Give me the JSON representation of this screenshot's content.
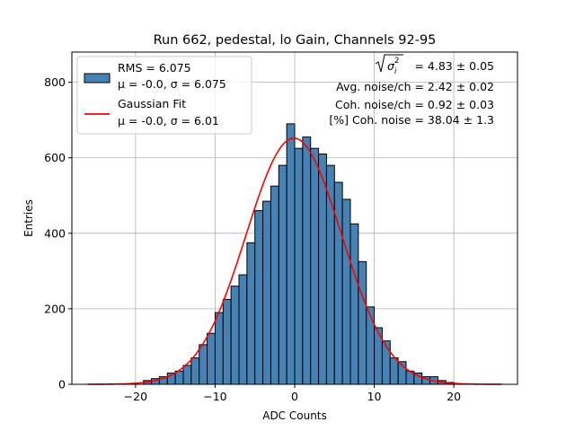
{
  "chart_data": {
    "type": "bar",
    "title": "Run 662, pedestal, lo Gain, Channels 92-95",
    "xlabel": "ADC Counts",
    "ylabel": "Entries",
    "xlim": [
      -28,
      28
    ],
    "ylim": [
      0,
      880
    ],
    "grid": true,
    "xticks": [
      -20,
      -10,
      0,
      10,
      20
    ],
    "yticks": [
      0,
      200,
      400,
      600,
      800
    ],
    "legend_position": "top-left",
    "bin_width": 1,
    "bins": [
      {
        "x0": -19,
        "value": 10
      },
      {
        "x0": -18,
        "value": 15
      },
      {
        "x0": -17,
        "value": 20
      },
      {
        "x0": -16,
        "value": 30
      },
      {
        "x0": -15,
        "value": 35
      },
      {
        "x0": -14,
        "value": 50
      },
      {
        "x0": -13,
        "value": 70
      },
      {
        "x0": -12,
        "value": 105
      },
      {
        "x0": -11,
        "value": 135
      },
      {
        "x0": -10,
        "value": 190
      },
      {
        "x0": -9,
        "value": 225
      },
      {
        "x0": -8,
        "value": 260
      },
      {
        "x0": -7,
        "value": 290
      },
      {
        "x0": -6,
        "value": 375
      },
      {
        "x0": -5,
        "value": 460
      },
      {
        "x0": -4,
        "value": 485
      },
      {
        "x0": -3,
        "value": 525
      },
      {
        "x0": -2,
        "value": 580
      },
      {
        "x0": -1,
        "value": 690
      },
      {
        "x0": 0,
        "value": 625
      },
      {
        "x0": 1,
        "value": 655
      },
      {
        "x0": 2,
        "value": 625
      },
      {
        "x0": 3,
        "value": 610
      },
      {
        "x0": 4,
        "value": 580
      },
      {
        "x0": 5,
        "value": 535
      },
      {
        "x0": 6,
        "value": 490
      },
      {
        "x0": 7,
        "value": 425
      },
      {
        "x0": 8,
        "value": 325
      },
      {
        "x0": 9,
        "value": 205
      },
      {
        "x0": 10,
        "value": 150
      },
      {
        "x0": 11,
        "value": 115
      },
      {
        "x0": 12,
        "value": 70
      },
      {
        "x0": 13,
        "value": 60
      },
      {
        "x0": 14,
        "value": 35
      },
      {
        "x0": 15,
        "value": 30
      },
      {
        "x0": 16,
        "value": 20
      },
      {
        "x0": 17,
        "value": 20
      },
      {
        "x0": 18,
        "value": 10
      },
      {
        "x0": 19,
        "value": 5
      }
    ],
    "fit": {
      "amplitude": 652,
      "mean": -0.1,
      "sigma": 6.01,
      "x_range": [
        -26,
        26
      ]
    },
    "histogram_color": "#4682b4",
    "fit_color": "#ff0000",
    "legend": [
      {
        "label_line1": "RMS = 6.075",
        "label_line2": "μ = -0.0, σ = 6.075"
      },
      {
        "label_line1": "Gaussian Fit",
        "label_line2": "μ = -0.0, σ = 6.01"
      }
    ],
    "annotations": {
      "sigma_value": " = 4.83 ± 0.05",
      "avg_noise": "Avg. noise/ch = 2.42 ± 0.02",
      "coh_noise": "Coh. noise/ch = 0.92 ± 0.03",
      "coh_pct": "[%] Coh. noise = 38.04 ± 1.3"
    }
  }
}
